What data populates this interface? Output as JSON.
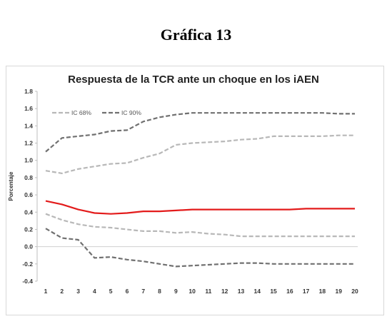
{
  "page": {
    "heading": "Gráfica 13"
  },
  "chart_data": {
    "type": "line",
    "title": "Respuesta de la TCR ante un choque en los iAEN",
    "xlabel": "",
    "ylabel": "Porcentaje",
    "ylim": [
      -0.4,
      1.8
    ],
    "yticks": [
      "1.8",
      "1.6",
      "1.4",
      "1.2",
      "1.0",
      "0.8",
      "0.6",
      "0.4",
      "0.2",
      "0.0",
      "-0.2",
      "-0.4"
    ],
    "x": [
      1,
      2,
      3,
      4,
      5,
      6,
      7,
      8,
      9,
      10,
      11,
      12,
      13,
      14,
      15,
      16,
      17,
      18,
      19,
      20
    ],
    "xticks": [
      "1",
      "2",
      "3",
      "4",
      "5",
      "6",
      "7",
      "8",
      "9",
      "10",
      "11",
      "12",
      "13",
      "14",
      "15",
      "16",
      "17",
      "18",
      "19",
      "20"
    ],
    "grid": false,
    "legend": {
      "placement": "top-left"
    },
    "series": [
      {
        "name": "",
        "color": "#e31b1b",
        "style": "solid",
        "values": [
          0.53,
          0.49,
          0.43,
          0.39,
          0.38,
          0.39,
          0.41,
          0.41,
          0.42,
          0.43,
          0.43,
          0.43,
          0.43,
          0.43,
          0.43,
          0.43,
          0.44,
          0.44,
          0.44,
          0.44
        ]
      },
      {
        "name": "IC 68%",
        "color": "#b8b8b8",
        "style": "dashed",
        "values": [
          0.88,
          0.85,
          0.9,
          0.93,
          0.96,
          0.97,
          1.03,
          1.08,
          1.18,
          1.2,
          1.21,
          1.22,
          1.24,
          1.25,
          1.28,
          1.28,
          1.28,
          1.28,
          1.29,
          1.29
        ]
      },
      {
        "name": "",
        "color": "#b8b8b8",
        "style": "dashed",
        "values": [
          0.38,
          0.31,
          0.26,
          0.23,
          0.22,
          0.2,
          0.18,
          0.18,
          0.16,
          0.17,
          0.15,
          0.14,
          0.12,
          0.12,
          0.12,
          0.12,
          0.12,
          0.12,
          0.12,
          0.12
        ]
      },
      {
        "name": "IC 90%",
        "color": "#707070",
        "style": "dashed",
        "values": [
          1.1,
          1.26,
          1.28,
          1.3,
          1.34,
          1.35,
          1.45,
          1.5,
          1.53,
          1.55,
          1.55,
          1.55,
          1.55,
          1.55,
          1.55,
          1.55,
          1.55,
          1.55,
          1.54,
          1.54
        ]
      },
      {
        "name": "",
        "color": "#707070",
        "style": "dashed",
        "values": [
          0.21,
          0.1,
          0.08,
          -0.13,
          -0.12,
          -0.15,
          -0.17,
          -0.2,
          -0.23,
          -0.22,
          -0.21,
          -0.2,
          -0.19,
          -0.19,
          -0.2,
          -0.2,
          -0.2,
          -0.2,
          -0.2,
          -0.2
        ]
      }
    ]
  }
}
